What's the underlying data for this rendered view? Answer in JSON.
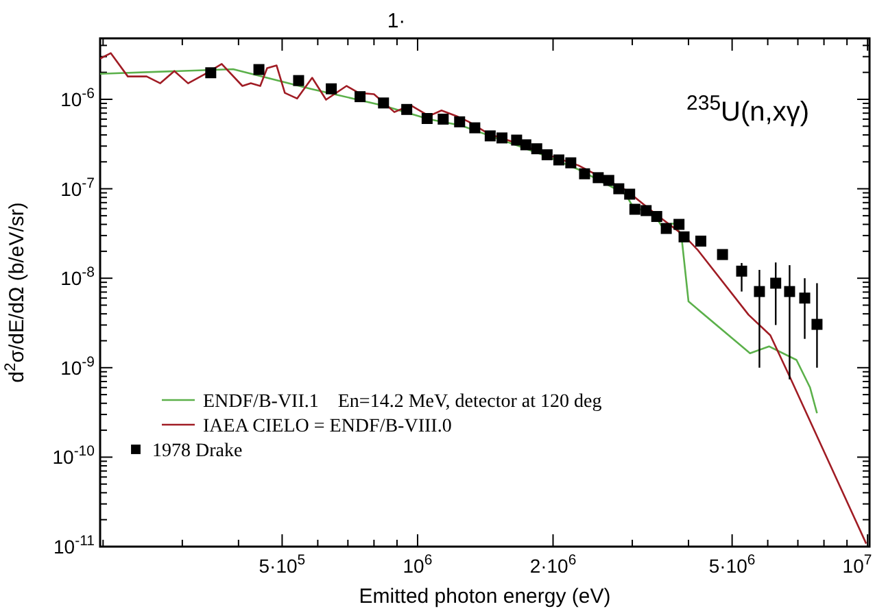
{
  "chart_data": {
    "type": "line",
    "title": "$^{235}$U(n,xγ)",
    "xlabel": "Emitted photon energy (eV)",
    "ylabel": "d$^{2}$σ/dE/dΩ (b/eV/sr)",
    "log": "xy",
    "grid": false,
    "legend": "left",
    "xlim": [
      197000,
      10100000
    ],
    "xticks": [
      {
        "value": 200000,
        "label": null
      },
      {
        "value": 300000,
        "label": null
      },
      {
        "value": 400000,
        "label": null
      },
      {
        "value": 500000,
        "label": "5·10$^{5}$"
      },
      {
        "value": 600000,
        "label": null
      },
      {
        "value": 700000,
        "label": null
      },
      {
        "value": 800000,
        "label": null
      },
      {
        "value": 900000,
        "label": null
      },
      {
        "value": 1000000,
        "label": "10$^{6}$"
      },
      {
        "value": 2000000,
        "label": "2·10$^{6}$"
      },
      {
        "value": 3000000,
        "label": null
      },
      {
        "value": 4000000,
        "label": null
      },
      {
        "value": 5000000,
        "label": "5·10$^{6}$"
      },
      {
        "value": 6000000,
        "label": null
      },
      {
        "value": 7000000,
        "label": null
      },
      {
        "value": 8000000,
        "label": null
      },
      {
        "value": 9000000,
        "label": null
      },
      {
        "value": 10000000,
        "label": "10$^{7}$"
      }
    ],
    "ylim": [
      1e-11,
      4.8e-06
    ],
    "yticks": [
      {
        "value": 1e-11,
        "label": "10$^{-11}$"
      },
      {
        "value": 2e-11,
        "label": null
      },
      {
        "value": 3e-11,
        "label": null
      },
      {
        "value": 4e-11,
        "label": null
      },
      {
        "value": 5e-11,
        "label": null
      },
      {
        "value": 6e-11,
        "label": null
      },
      {
        "value": 7e-11,
        "label": null
      },
      {
        "value": 8e-11,
        "label": null
      },
      {
        "value": 9e-11,
        "label": null
      },
      {
        "value": 1e-10,
        "label": "10$^{-10}$"
      },
      {
        "value": 2e-10,
        "label": null
      },
      {
        "value": 3e-10,
        "label": null
      },
      {
        "value": 4e-10,
        "label": null
      },
      {
        "value": 5e-10,
        "label": null
      },
      {
        "value": 6e-10,
        "label": null
      },
      {
        "value": 7e-10,
        "label": null
      },
      {
        "value": 8e-10,
        "label": null
      },
      {
        "value": 9e-10,
        "label": null
      },
      {
        "value": 1e-09,
        "label": "10$^{-9}$"
      },
      {
        "value": 2e-09,
        "label": null
      },
      {
        "value": 3e-09,
        "label": null
      },
      {
        "value": 4e-09,
        "label": null
      },
      {
        "value": 5e-09,
        "label": null
      },
      {
        "value": 6e-09,
        "label": null
      },
      {
        "value": 7e-09,
        "label": null
      },
      {
        "value": 8e-09,
        "label": null
      },
      {
        "value": 9e-09,
        "label": null
      },
      {
        "value": 1e-08,
        "label": "10$^{-8}$"
      },
      {
        "value": 2e-08,
        "label": null
      },
      {
        "value": 3e-08,
        "label": null
      },
      {
        "value": 4e-08,
        "label": null
      },
      {
        "value": 5e-08,
        "label": null
      },
      {
        "value": 6e-08,
        "label": null
      },
      {
        "value": 7e-08,
        "label": null
      },
      {
        "value": 8e-08,
        "label": null
      },
      {
        "value": 9e-08,
        "label": null
      },
      {
        "value": 1e-07,
        "label": "10$^{-7}$"
      },
      {
        "value": 2e-07,
        "label": null
      },
      {
        "value": 3e-07,
        "label": null
      },
      {
        "value": 4e-07,
        "label": null
      },
      {
        "value": 5e-07,
        "label": null
      },
      {
        "value": 6e-07,
        "label": null
      },
      {
        "value": 7e-07,
        "label": null
      },
      {
        "value": 8e-07,
        "label": null
      },
      {
        "value": 9e-07,
        "label": null
      },
      {
        "value": 1e-06,
        "label": "10$^{-6}$"
      },
      {
        "value": 2e-06,
        "label": null
      },
      {
        "value": 3e-06,
        "label": null
      },
      {
        "value": 4e-06,
        "label": null
      }
    ],
    "annotations": [
      "1·"
    ],
    "series": [
      {
        "name": "ENDF/B-VII.1    En=14.2 MeV, detector at 120 deg",
        "color": "#5bb04a",
        "x": [
          197000,
          389000,
          579000,
          840000,
          1060000,
          1250000,
          1470000,
          1900000,
          2280000,
          2900000,
          3020000,
          3330000,
          3480000,
          3730000,
          3860000,
          4000000,
          5480000,
          6040000,
          6950000,
          7450000,
          7720000
        ],
        "values": [
          1.93e-06,
          2.17e-06,
          1.31e-06,
          8.5e-07,
          6e-07,
          5.1e-07,
          3.8e-07,
          2.4e-07,
          1.64e-07,
          8.7e-08,
          6.1e-08,
          5.5e-08,
          3.9e-08,
          4.1e-08,
          2.9e-08,
          5.5e-09,
          1.45e-09,
          1.73e-09,
          1.22e-09,
          6e-10,
          3.1e-10
        ]
      },
      {
        "name": "IAEA CIELO = ENDF/B-VIII.0",
        "color": "#a01c24",
        "x": [
          197000,
          208000,
          227000,
          250000,
          268000,
          288000,
          309000,
          338000,
          367000,
          408000,
          426000,
          447000,
          463000,
          486000,
          507000,
          540000,
          583000,
          626000,
          695000,
          740000,
          800000,
          888000,
          965000,
          1060000,
          1130000,
          1220000,
          1300000,
          1440000,
          1670000,
          1900000,
          2280000,
          2900000,
          3400000,
          3910000,
          4200000,
          5440000,
          6080000,
          6710000,
          9930000
        ],
        "values": [
          2.85e-06,
          3.28e-06,
          1.8e-06,
          1.8e-06,
          1.51e-06,
          2.07e-06,
          1.51e-06,
          1.93e-06,
          2.48e-06,
          1.41e-06,
          1.51e-06,
          1.41e-06,
          2.23e-06,
          2.39e-06,
          1.18e-06,
          1.02e-06,
          1.74e-06,
          9.9e-07,
          1.41e-06,
          1.18e-06,
          1.14e-06,
          7.2e-07,
          8.6e-07,
          6.5e-07,
          7.5e-07,
          6.5e-07,
          5.6e-07,
          4.1e-07,
          3.2e-07,
          2.5e-07,
          1.82e-07,
          9.7e-08,
          5.1e-08,
          3e-08,
          2.05e-08,
          3.9e-09,
          2.3e-09,
          8e-10,
          1.08e-11
        ]
      },
      {
        "name": "1978 Drake",
        "type": "scatter",
        "marker": "square",
        "color": "#000000",
        "x": [
          347000,
          444000,
          544000,
          643000,
          745000,
          840000,
          946000,
          1050000,
          1140000,
          1240000,
          1340000,
          1450000,
          1540000,
          1660000,
          1740000,
          1840000,
          1940000,
          2060000,
          2190000,
          2350000,
          2520000,
          2660000,
          2800000,
          2960000,
          3040000,
          3220000,
          3400000,
          3570000,
          3810000,
          3910000,
          4260000,
          4760000,
          5250000,
          5750000,
          6250000,
          6710000,
          7250000,
          7720000
        ],
        "values": [
          1.98e-06,
          2.15e-06,
          1.62e-06,
          1.31e-06,
          1.07e-06,
          9.1e-07,
          7.7e-07,
          6.1e-07,
          6e-07,
          5.6e-07,
          4.8e-07,
          3.9e-07,
          3.7e-07,
          3.5e-07,
          3.1e-07,
          2.8e-07,
          2.4e-07,
          2.1e-07,
          1.95e-07,
          1.47e-07,
          1.33e-07,
          1.24e-07,
          1e-07,
          8.7e-08,
          5.9e-08,
          5.7e-08,
          4.9e-08,
          3.6e-08,
          4e-08,
          2.9e-08,
          2.6e-08,
          1.84e-08,
          1.2e-08,
          7.1e-09,
          8.8e-09,
          7.1e-09,
          6e-09,
          3.05e-09
        ],
        "errors": [
          null,
          null,
          null,
          null,
          null,
          null,
          null,
          null,
          null,
          null,
          null,
          null,
          null,
          null,
          null,
          null,
          null,
          null,
          null,
          null,
          null,
          null,
          null,
          null,
          null,
          null,
          null,
          null,
          null,
          null,
          null,
          null,
          [
            7.1e-09,
            1.48e-08
          ],
          [
            1e-09,
            1.24e-08
          ],
          [
            3e-09,
            1.5e-08
          ],
          [
            7.4e-10,
            1.4e-08
          ],
          [
            2.1e-09,
            1e-08
          ],
          [
            1e-09,
            8.8e-09
          ]
        ]
      }
    ]
  }
}
